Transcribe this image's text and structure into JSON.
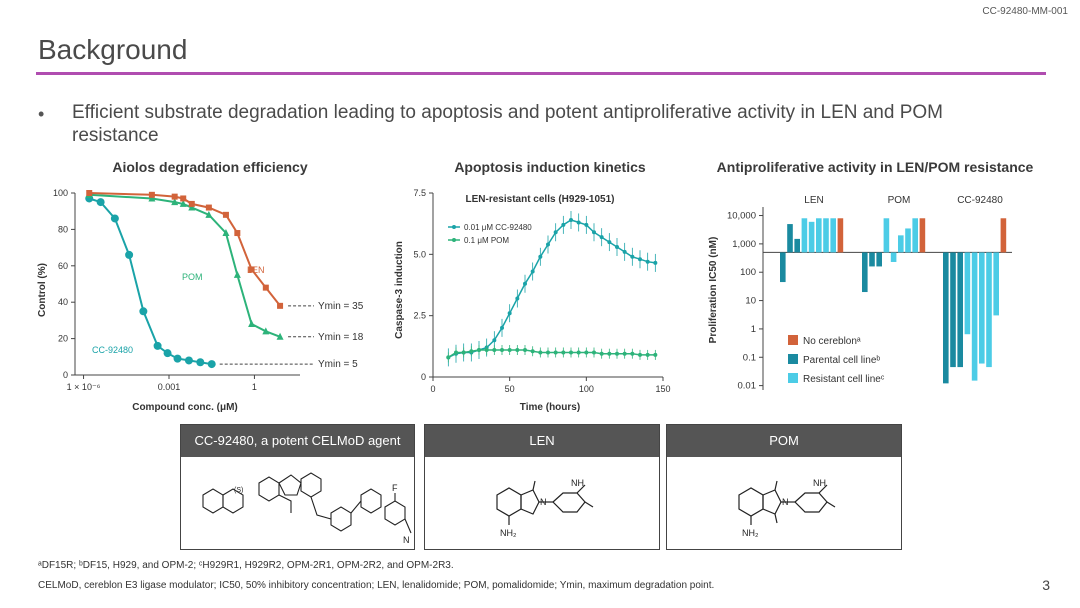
{
  "doc_id": "CC-92480-MM-001",
  "slide_title": "Background",
  "bullet": "Efficient substrate degradation leading to apoptosis and potent antiproliferative activity in LEN and POM resistance",
  "chart_data": [
    {
      "type": "scatter",
      "title": "Aiolos degradation efficiency",
      "xlabel": "Compound conc. (μM)",
      "ylabel": "Control (%)",
      "x_scale": "log",
      "xlim_log10": [
        -6.3,
        1.6
      ],
      "ylim": [
        0,
        100
      ],
      "yticks": [
        "0",
        "20",
        "40",
        "60",
        "80",
        "100"
      ],
      "xticks": [
        {
          "label": "1 × 10⁻⁶",
          "log10": -6
        },
        {
          "label": "0.001",
          "log10": -3
        },
        {
          "label": "1",
          "log10": 0
        }
      ],
      "series": [
        {
          "name": "CC-92480",
          "color": "#1aa3a8",
          "x_log10": [
            -5.8,
            -5.4,
            -4.9,
            -4.4,
            -3.9,
            -3.4,
            -3.05,
            -2.7,
            -2.3,
            -1.9,
            -1.5
          ],
          "values": [
            97,
            95,
            86,
            66,
            35,
            16,
            12,
            9,
            8,
            7,
            6
          ],
          "ymin_label": "Ymin = 5"
        },
        {
          "name": "POM",
          "color": "#2db37a",
          "x_log10": [
            -5.8,
            -3.6,
            -2.8,
            -2.5,
            -2.2,
            -1.6,
            -1.0,
            -0.6,
            -0.1,
            0.4,
            0.9
          ],
          "values": [
            99,
            97,
            95,
            94,
            92,
            88,
            78,
            55,
            28,
            24,
            21
          ],
          "ymin_label": "Ymin = 18"
        },
        {
          "name": "LEN",
          "color": "#d2633a",
          "x_log10": [
            -5.8,
            -3.6,
            -2.8,
            -2.5,
            -2.2,
            -1.6,
            -1.0,
            -0.6,
            -0.1,
            0.4,
            0.9
          ],
          "values": [
            100,
            99,
            98,
            97,
            94,
            92,
            88,
            78,
            58,
            48,
            38
          ],
          "ymin_label": "Ymin = 35"
        }
      ]
    },
    {
      "type": "line",
      "title": "Apoptosis induction kinetics",
      "subtitle": "LEN-resistant cells (H929-1051)",
      "xlabel": "Time (hours)",
      "ylabel": "Caspase-3 induction",
      "xlim": [
        0,
        150
      ],
      "ylim": [
        0,
        7.5
      ],
      "xticks": [
        "0",
        "50",
        "100",
        "150"
      ],
      "yticks": [
        "0",
        "2.5",
        "5.0",
        "7.5"
      ],
      "series": [
        {
          "name": "0.01 μM CC-92480",
          "color": "#1aa3a8",
          "x": [
            10,
            15,
            20,
            25,
            30,
            35,
            40,
            45,
            50,
            55,
            60,
            65,
            70,
            75,
            80,
            85,
            90,
            95,
            100,
            105,
            110,
            115,
            120,
            125,
            130,
            135,
            140,
            145
          ],
          "values": [
            0.8,
            0.95,
            1.0,
            1.0,
            1.1,
            1.2,
            1.5,
            2.0,
            2.6,
            3.2,
            3.8,
            4.3,
            4.9,
            5.4,
            5.9,
            6.2,
            6.4,
            6.3,
            6.2,
            5.9,
            5.7,
            5.5,
            5.3,
            5.1,
            4.9,
            4.8,
            4.7,
            4.65
          ]
        },
        {
          "name": "0.1 μM POM",
          "color": "#2db37a",
          "x": [
            10,
            15,
            20,
            25,
            30,
            35,
            40,
            45,
            50,
            55,
            60,
            65,
            70,
            75,
            80,
            85,
            90,
            95,
            100,
            105,
            110,
            115,
            120,
            125,
            130,
            135,
            140,
            145
          ],
          "values": [
            0.8,
            1.0,
            1.0,
            1.05,
            1.1,
            1.1,
            1.1,
            1.1,
            1.1,
            1.1,
            1.1,
            1.05,
            1.0,
            1.0,
            1.0,
            1.0,
            1.0,
            1.0,
            1.0,
            1.0,
            0.95,
            0.95,
            0.95,
            0.95,
            0.95,
            0.9,
            0.9,
            0.9
          ]
        }
      ]
    },
    {
      "type": "bar",
      "title": "Antiproliferative activity in LEN/POM resistance",
      "ylabel": "Proliferation IC50 (nM)",
      "y_scale": "log",
      "baseline": 500,
      "ylim": [
        0.007,
        20000
      ],
      "yticks": [
        "0.01",
        "0.1",
        "1",
        "10",
        "100",
        "1,000",
        "10,000"
      ],
      "groups": [
        "LEN",
        "POM",
        "CC-92480"
      ],
      "legend": [
        "No cereblonᵃ",
        "Parental cell lineᵇ",
        "Resistant cell lineᶜ"
      ],
      "colors": {
        "No cereblon": "#d2633a",
        "Parental": "#1a8aa0",
        "Resistant": "#4ccce6"
      },
      "bars": [
        {
          "group": "LEN",
          "kind": "Parental",
          "value": 45
        },
        {
          "group": "LEN",
          "kind": "Parental",
          "value": 5000
        },
        {
          "group": "LEN",
          "kind": "Parental",
          "value": 1500
        },
        {
          "group": "LEN",
          "kind": "Resistant",
          "value": 8000
        },
        {
          "group": "LEN",
          "kind": "Resistant",
          "value": 6000
        },
        {
          "group": "LEN",
          "kind": "Resistant",
          "value": 8000
        },
        {
          "group": "LEN",
          "kind": "Resistant",
          "value": 8000
        },
        {
          "group": "LEN",
          "kind": "Resistant",
          "value": 8000
        },
        {
          "group": "LEN",
          "kind": "No cereblon",
          "value": 8000
        },
        {
          "group": "POM",
          "kind": "Parental",
          "value": 20
        },
        {
          "group": "POM",
          "kind": "Parental",
          "value": 160
        },
        {
          "group": "POM",
          "kind": "Parental",
          "value": 160
        },
        {
          "group": "POM",
          "kind": "Resistant",
          "value": 8000
        },
        {
          "group": "POM",
          "kind": "Resistant",
          "value": 230
        },
        {
          "group": "POM",
          "kind": "Resistant",
          "value": 2000
        },
        {
          "group": "POM",
          "kind": "Resistant",
          "value": 3500
        },
        {
          "group": "POM",
          "kind": "Resistant",
          "value": 8000
        },
        {
          "group": "POM",
          "kind": "No cereblon",
          "value": 8000
        },
        {
          "group": "CC-92480",
          "kind": "Parental",
          "value": 0.012
        },
        {
          "group": "CC-92480",
          "kind": "Parental",
          "value": 0.045
        },
        {
          "group": "CC-92480",
          "kind": "Parental",
          "value": 0.045
        },
        {
          "group": "CC-92480",
          "kind": "Resistant",
          "value": 0.65
        },
        {
          "group": "CC-92480",
          "kind": "Resistant",
          "value": 0.015
        },
        {
          "group": "CC-92480",
          "kind": "Resistant",
          "value": 0.06
        },
        {
          "group": "CC-92480",
          "kind": "Resistant",
          "value": 0.045
        },
        {
          "group": "CC-92480",
          "kind": "Resistant",
          "value": 3
        },
        {
          "group": "CC-92480",
          "kind": "No cereblon",
          "value": 8000
        }
      ]
    }
  ],
  "structures": {
    "box1": {
      "header": "CC-92480, a potent CELMoD agent",
      "stereo": "(S)",
      "f": "F",
      "n": "N"
    },
    "box2": {
      "header": "LEN",
      "nh": "NH",
      "nh2": "NH₂",
      "n": "N"
    },
    "box3": {
      "header": "POM",
      "nh": "NH",
      "nh2": "NH₂",
      "n": "N"
    }
  },
  "footnote1": "ᵃDF15R; ᵇDF15, H929, and OPM-2; ᶜH929R1, H929R2, OPM-2R1, OPM-2R2, and OPM-2R3.",
  "footnote2": "CELMoD, cereblon E3 ligase modulator; IC50, 50% inhibitory concentration; LEN, lenalidomide; POM, pomalidomide; Ymin, maximum degradation point.",
  "page_number": "3"
}
